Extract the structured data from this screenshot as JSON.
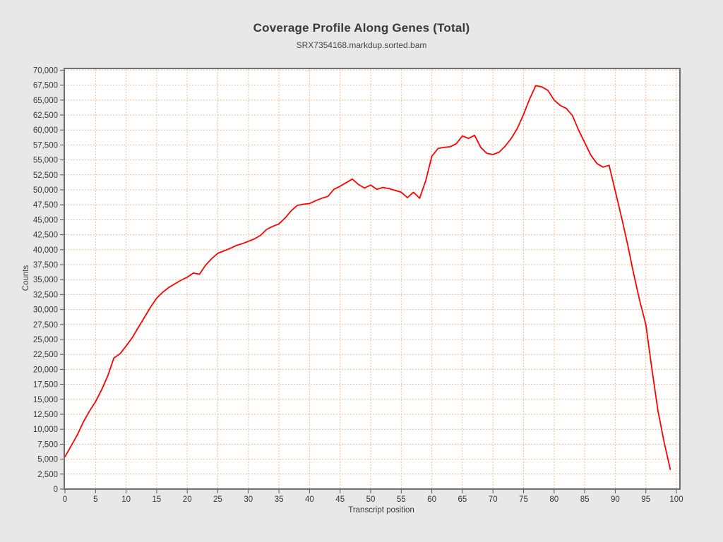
{
  "window": {
    "background_color": "#e8e8e8"
  },
  "chart": {
    "title": "Coverage Profile Along Genes (Total)",
    "subtitle": "SRX7354168.markdup.sorted.bam",
    "xlabel": "Transcript position",
    "ylabel": "Counts",
    "colors": {
      "series_line": "#ff0000",
      "grid": "#f3bd94",
      "frame": "#6f6f6f",
      "tick_text": "#363636",
      "plot_background": "#ffffff"
    }
  },
  "chart_data": {
    "type": "line",
    "title": "Coverage Profile Along Genes (Total)",
    "subtitle": "SRX7354168.markdup.sorted.bam",
    "xlabel": "Transcript position",
    "ylabel": "Counts",
    "series_name": "SRX7354168.markdup.sorted.bam",
    "line_color": "#ff0000",
    "grid": true,
    "legend_position": "none",
    "xlim": [
      0,
      100
    ],
    "ylim": [
      0,
      70000
    ],
    "x_ticks": [
      0,
      5,
      10,
      15,
      20,
      25,
      30,
      35,
      40,
      45,
      50,
      55,
      60,
      65,
      70,
      75,
      80,
      85,
      90,
      95,
      100
    ],
    "x_tick_labels": [
      "0",
      "5",
      "10",
      "15",
      "20",
      "25",
      "30",
      "35",
      "40",
      "45",
      "50",
      "55",
      "60",
      "65",
      "70",
      "75",
      "80",
      "85",
      "90",
      "95",
      "100"
    ],
    "y_ticks": [
      0,
      2500,
      5000,
      7500,
      10000,
      12500,
      15000,
      17500,
      20000,
      22500,
      25000,
      27500,
      30000,
      32500,
      35000,
      37500,
      40000,
      42500,
      45000,
      47500,
      50000,
      52500,
      55000,
      57500,
      60000,
      62500,
      65000,
      67500,
      70000
    ],
    "y_tick_labels": [
      "0",
      "2,500",
      "5,000",
      "7,500",
      "10,000",
      "12,500",
      "15,000",
      "17,500",
      "20,000",
      "22,500",
      "25,000",
      "27,500",
      "30,000",
      "32,500",
      "35,000",
      "37,500",
      "40,000",
      "42,500",
      "45,000",
      "47,500",
      "50,000",
      "52,500",
      "55,000",
      "57,500",
      "60,000",
      "62,500",
      "65,000",
      "67,500",
      "70,000"
    ],
    "x": [
      0,
      1,
      2,
      3,
      4,
      5,
      6,
      7,
      8,
      9,
      10,
      11,
      12,
      13,
      14,
      15,
      16,
      17,
      18,
      19,
      20,
      21,
      22,
      23,
      24,
      25,
      26,
      27,
      28,
      29,
      30,
      31,
      32,
      33,
      34,
      35,
      36,
      37,
      38,
      39,
      40,
      41,
      42,
      43,
      44,
      45,
      46,
      47,
      48,
      49,
      50,
      51,
      52,
      53,
      54,
      55,
      56,
      57,
      58,
      59,
      60,
      61,
      62,
      63,
      64,
      65,
      66,
      67,
      68,
      69,
      70,
      71,
      72,
      73,
      74,
      75,
      76,
      77,
      78,
      79,
      80,
      81,
      82,
      83,
      84,
      85,
      86,
      87,
      88,
      89,
      90,
      91,
      92,
      93,
      94,
      95,
      96,
      97,
      98,
      99
    ],
    "values": [
      5400,
      7200,
      9000,
      11200,
      13000,
      14600,
      16600,
      18900,
      21900,
      22600,
      23900,
      25300,
      27000,
      28700,
      30400,
      31900,
      32900,
      33700,
      34300,
      34900,
      35400,
      36100,
      35900,
      37400,
      38500,
      39400,
      39800,
      40200,
      40700,
      41000,
      41400,
      41800,
      42400,
      43400,
      43900,
      44300,
      45300,
      46500,
      47400,
      47600,
      47700,
      48200,
      48600,
      48900,
      50100,
      50600,
      51200,
      51800,
      50900,
      50300,
      50800,
      50100,
      50400,
      50200,
      49900,
      49600,
      48700,
      49600,
      48600,
      51500,
      55600,
      56900,
      57100,
      57200,
      57700,
      59000,
      58600,
      59100,
      57100,
      56100,
      55900,
      56300,
      57300,
      58600,
      60300,
      62600,
      65200,
      67400,
      67200,
      66600,
      65000,
      64100,
      63600,
      62400,
      60000,
      57900,
      55800,
      54400,
      53800,
      54100,
      49800,
      45500,
      41000,
      36000,
      31500,
      27500,
      20000,
      13000,
      7800,
      3300
    ]
  }
}
